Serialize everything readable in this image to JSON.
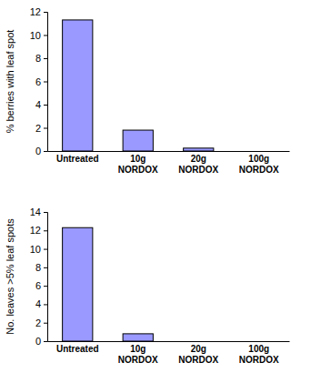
{
  "chart_data": [
    {
      "type": "bar",
      "y_label": "% berries with leaf spot",
      "categories": [
        "Untreated",
        "10g NORDOX",
        "20g NORDOX",
        "100g NORDOX"
      ],
      "values": [
        11.3,
        1.8,
        0.25,
        0
      ],
      "color": "#9999ff",
      "ylim": [
        0,
        12
      ],
      "yticks": [
        0,
        2,
        4,
        6,
        8,
        10,
        12
      ]
    },
    {
      "type": "bar",
      "y_label": "No. leaves >5% leaf spots",
      "categories": [
        "Untreated",
        "10g NORDOX",
        "20g NORDOX",
        "100g NORDOX"
      ],
      "values": [
        12.3,
        0.8,
        0,
        0
      ],
      "color": "#9999ff",
      "ylim": [
        0,
        14
      ],
      "yticks": [
        0,
        2,
        4,
        6,
        8,
        10,
        12,
        14
      ]
    }
  ]
}
